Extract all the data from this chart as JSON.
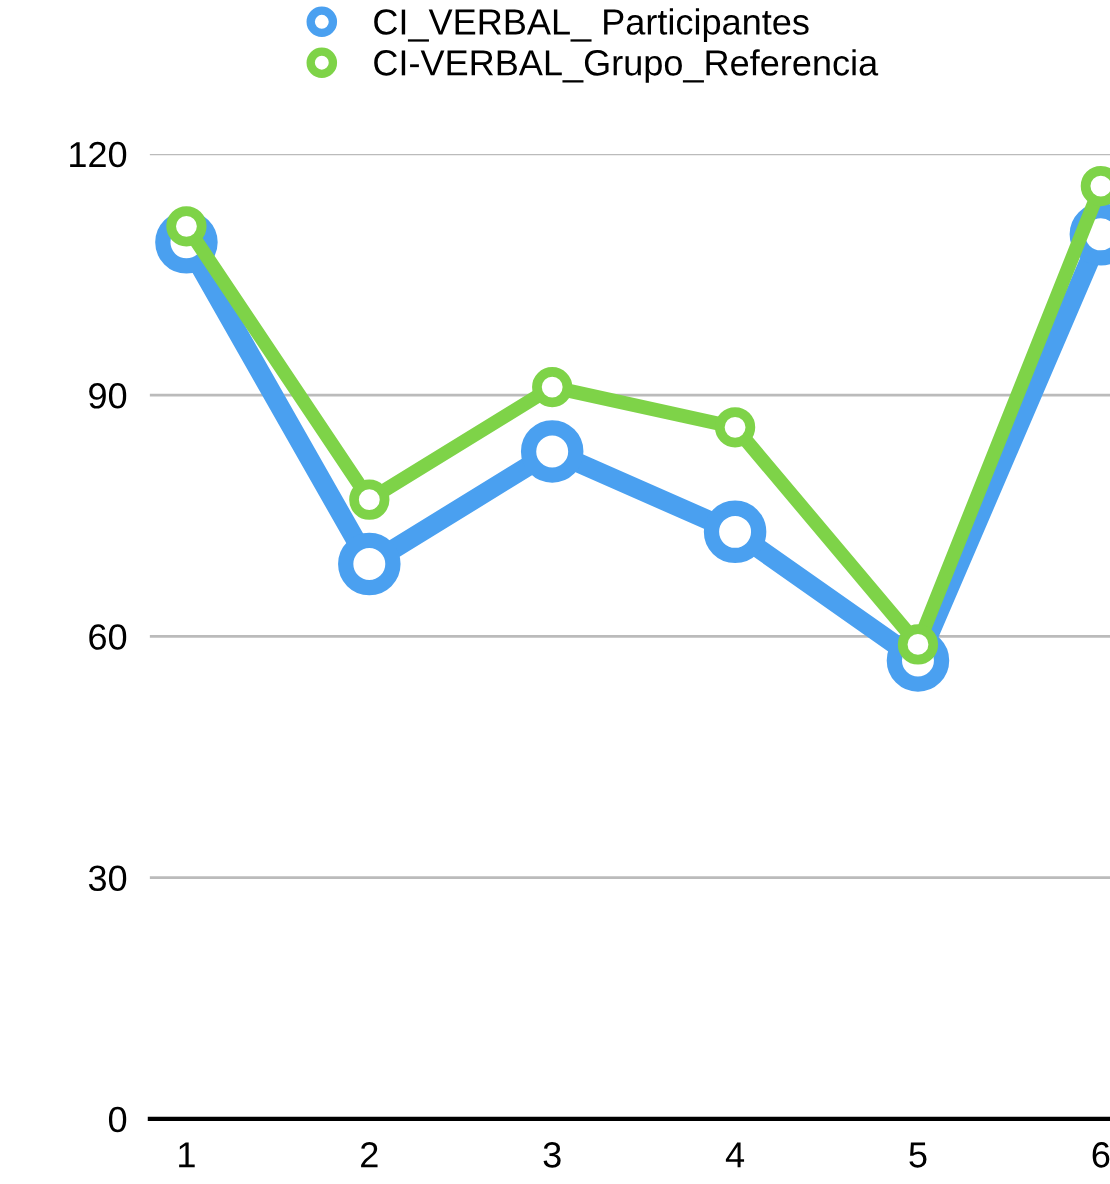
{
  "chart_data": {
    "type": "line",
    "categories": [
      "1",
      "2",
      "3",
      "4",
      "5",
      "6"
    ],
    "series": [
      {
        "name": "CI_VERBAL_ Participantes",
        "color": "#4aa0f0",
        "values": [
          109,
          69,
          83,
          73,
          57,
          110
        ]
      },
      {
        "name": "CI-VERBAL_Grupo_Referencia",
        "color": "#7ed348",
        "values": [
          111,
          77,
          91,
          86,
          59,
          116
        ]
      }
    ],
    "ylim": [
      0,
      120
    ],
    "yticks": [
      0,
      30,
      60,
      90,
      120
    ],
    "grid": "y",
    "legend": "top",
    "marker": "circle",
    "line_style": "solid"
  }
}
